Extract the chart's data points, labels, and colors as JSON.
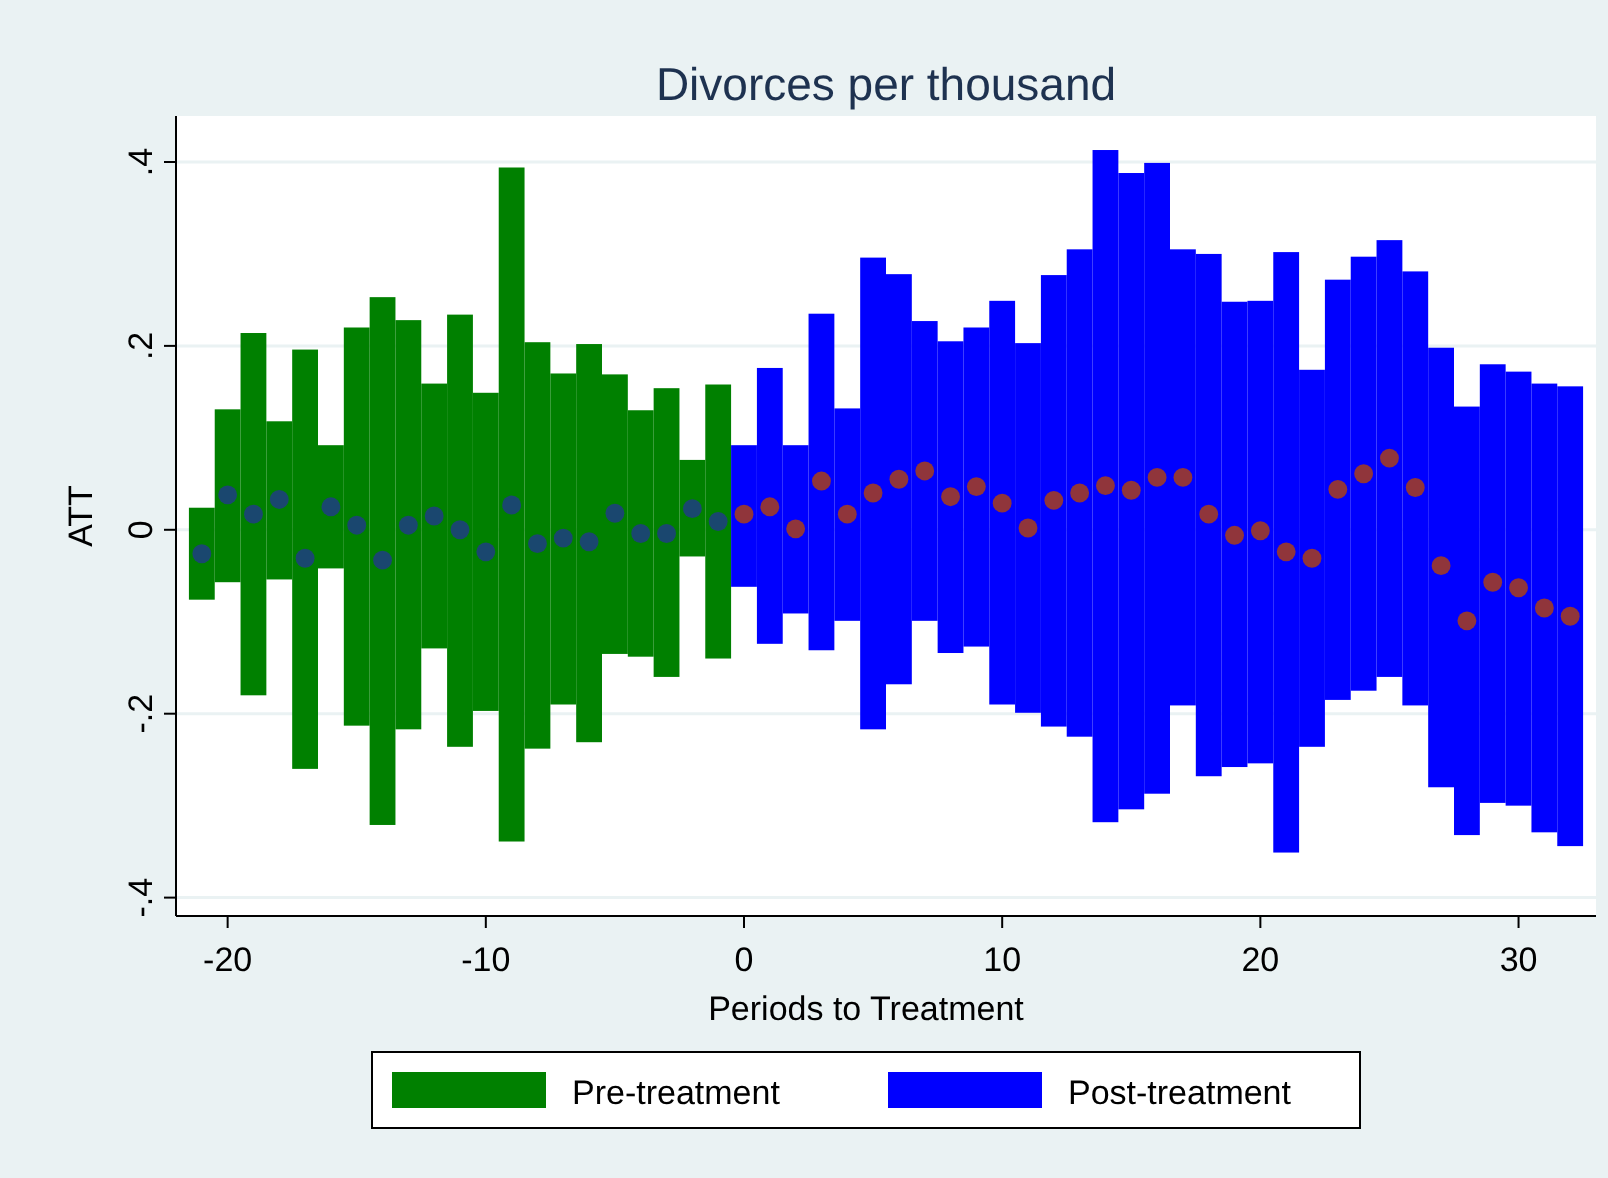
{
  "chart_data": {
    "type": "bar",
    "title": "Divorces per thousand",
    "xlabel": "Periods to Treatment",
    "ylabel": "ATT",
    "xlim": [
      -22,
      33
    ],
    "xticks": [
      -20,
      -10,
      0,
      10,
      20,
      30
    ],
    "ylim": [
      -0.42,
      0.45
    ],
    "yticks": [
      {
        "value": -0.4,
        "label": "-.4"
      },
      {
        "value": -0.2,
        "label": "-.2"
      },
      0,
      {
        "value": 0.2,
        "label": ".2"
      },
      {
        "value": 0.4,
        "label": ".4"
      }
    ],
    "grid": "y",
    "legend": "bottom",
    "series": [
      {
        "name": "Pre-treatment",
        "color": "#008000",
        "x": [
          -21,
          -20,
          -19,
          -18,
          -17,
          -16,
          -15,
          -14,
          -13,
          -12,
          -11,
          -10,
          -9,
          -8,
          -7,
          -6,
          -5,
          -4,
          -3,
          -2,
          -1
        ],
        "base": [
          -0.076,
          -0.057,
          -0.18,
          -0.054,
          -0.26,
          -0.042,
          -0.213,
          -0.321,
          -0.217,
          -0.129,
          -0.236,
          -0.197,
          -0.339,
          -0.238,
          -0.19,
          -0.231,
          -0.135,
          -0.138,
          -0.16,
          -0.029,
          -0.14
        ],
        "values": [
          0.1,
          0.188,
          0.394,
          0.172,
          0.456,
          0.134,
          0.433,
          0.574,
          0.445,
          0.288,
          0.47,
          0.346,
          0.733,
          0.442,
          0.36,
          0.433,
          0.304,
          0.268,
          0.314,
          0.105,
          0.298
        ]
      },
      {
        "name": "Post-treatment",
        "color": "#0000ff",
        "x": [
          0,
          1,
          2,
          3,
          4,
          5,
          6,
          7,
          8,
          9,
          10,
          11,
          12,
          13,
          14,
          15,
          16,
          17,
          18,
          19,
          20,
          21,
          22,
          23,
          24,
          25,
          26,
          27,
          28,
          29,
          30,
          31,
          32
        ],
        "base": [
          -0.062,
          -0.124,
          -0.091,
          -0.131,
          -0.099,
          -0.217,
          -0.168,
          -0.099,
          -0.134,
          -0.127,
          -0.19,
          -0.199,
          -0.214,
          -0.225,
          -0.318,
          -0.304,
          -0.287,
          -0.191,
          -0.268,
          -0.258,
          -0.254,
          -0.351,
          -0.236,
          -0.185,
          -0.175,
          -0.16,
          -0.191,
          -0.28,
          -0.332,
          -0.297,
          -0.3,
          -0.329,
          -0.344
        ],
        "values": [
          0.154,
          0.3,
          0.183,
          0.366,
          0.231,
          0.513,
          0.446,
          0.326,
          0.339,
          0.347,
          0.439,
          0.402,
          0.491,
          0.53,
          0.731,
          0.692,
          0.686,
          0.496,
          0.568,
          0.506,
          0.503,
          0.653,
          0.41,
          0.457,
          0.472,
          0.475,
          0.472,
          0.478,
          0.466,
          0.477,
          0.472,
          0.488,
          0.5
        ]
      },
      {
        "type": "scatter",
        "color": "#1a476f",
        "marker": "circle",
        "x": [
          -21,
          -20,
          -19,
          -18,
          -17,
          -16,
          -15,
          -14,
          -13,
          -12,
          -11,
          -10,
          -9,
          -8,
          -7,
          -6,
          -5,
          -4,
          -3,
          -2,
          -1
        ],
        "values": [
          -0.026,
          0.038,
          0.017,
          0.033,
          -0.031,
          0.025,
          0.005,
          -0.033,
          0.005,
          0.015,
          0.0,
          -0.024,
          0.027,
          -0.015,
          -0.009,
          -0.013,
          0.018,
          -0.004,
          -0.004,
          0.023,
          0.009
        ]
      },
      {
        "type": "scatter",
        "color": "#90353b",
        "marker": "circle",
        "x": [
          0,
          1,
          2,
          3,
          4,
          5,
          6,
          7,
          8,
          9,
          10,
          11,
          12,
          13,
          14,
          15,
          16,
          17,
          18,
          19,
          20,
          21,
          22,
          23,
          24,
          25,
          26,
          27,
          28,
          29,
          30,
          31,
          32
        ],
        "values": [
          0.017,
          0.025,
          0.001,
          0.053,
          0.017,
          0.04,
          0.055,
          0.064,
          0.036,
          0.047,
          0.029,
          0.002,
          0.032,
          0.04,
          0.048,
          0.043,
          0.057,
          0.057,
          0.017,
          -0.006,
          -0.001,
          -0.024,
          -0.031,
          0.044,
          0.061,
          0.078,
          0.046,
          -0.039,
          -0.099,
          -0.057,
          -0.063,
          -0.085,
          -0.094
        ]
      }
    ]
  }
}
